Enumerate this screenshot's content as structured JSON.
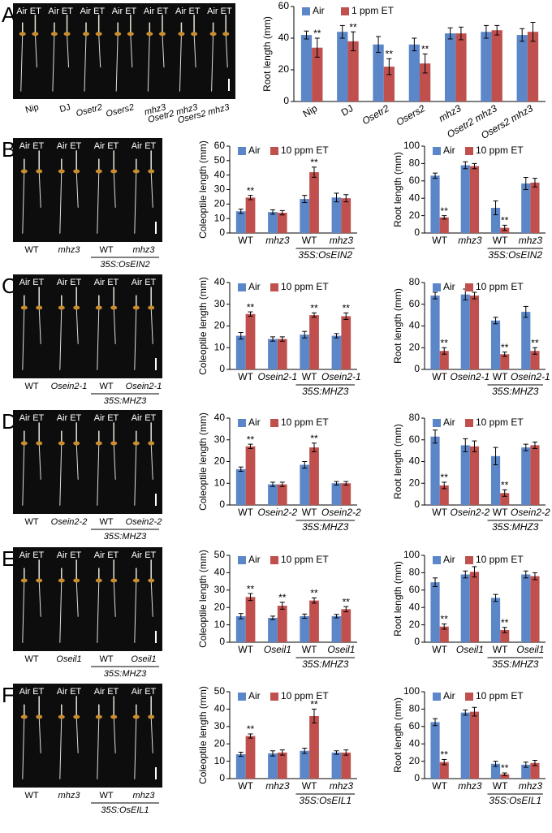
{
  "panels": [
    {
      "label": "A",
      "photo": {
        "pairs": [
          "Air ET",
          "Air ET",
          "Air ET",
          "Air ET",
          "Air ET",
          "Air ET",
          "Air ET"
        ],
        "genotypes": [
          "Nip",
          "DJ",
          "Osetr2",
          "Osers2",
          "mhz3",
          "Osetr2 mhz3",
          "Osers2 mhz3"
        ]
      }
    },
    {
      "label": "B",
      "photo": {
        "pairs": [
          "Air ET",
          "Air ET",
          "Air ET",
          "Air ET"
        ],
        "genotypes": [
          "WT",
          "mhz3",
          "WT",
          "mhz3"
        ],
        "group": "35S:OsEIN2"
      }
    },
    {
      "label": "C",
      "photo": {
        "pairs": [
          "Air ET",
          "Air ET",
          "Air ET",
          "Air ET"
        ],
        "genotypes": [
          "WT",
          "Osein2-1",
          "WT",
          "Osein2-1"
        ],
        "group": "35S:MHZ3"
      }
    },
    {
      "label": "D",
      "photo": {
        "pairs": [
          "Air ET",
          "Air ET",
          "Air ET",
          "Air ET"
        ],
        "genotypes": [
          "WT",
          "Osein2-2",
          "WT",
          "Osein2-2"
        ],
        "group": "35S:MHZ3"
      }
    },
    {
      "label": "E",
      "photo": {
        "pairs": [
          "Air ET",
          "Air ET",
          "Air ET",
          "Air ET"
        ],
        "genotypes": [
          "WT",
          "Oseil1",
          "WT",
          "Oseil1"
        ],
        "group": "35S:MHZ3"
      }
    },
    {
      "label": "F",
      "photo": {
        "pairs": [
          "Air ET",
          "Air ET",
          "Air ET",
          "Air ET"
        ],
        "genotypes": [
          "WT",
          "mhz3",
          "WT",
          "mhz3"
        ],
        "group": "35S:OsEIL1"
      }
    }
  ],
  "chart_data": [
    {
      "type": "bar",
      "ylabel": "Root length (mm)",
      "categories": [
        "Nip",
        "DJ",
        "Osetr2",
        "Osers2",
        "mhz3",
        "Osetr2 mhz3",
        "Osers2 mhz3"
      ],
      "ylim": [
        0,
        60
      ],
      "yticks": [
        0,
        20,
        40,
        60
      ],
      "series": [
        {
          "name": "Air",
          "color": "#5b87c9",
          "values": [
            42,
            44,
            36,
            36,
            43,
            44,
            42
          ],
          "errors": [
            2.5,
            4,
            5,
            4,
            3.5,
            4,
            4
          ]
        },
        {
          "name": "1 ppm ET",
          "color": "#c0504d",
          "values": [
            34,
            38,
            22,
            24,
            43,
            45,
            44
          ],
          "errors": [
            6,
            6,
            5,
            6,
            4,
            3,
            6
          ],
          "significance": [
            "**",
            "**",
            "**",
            "**",
            null,
            null,
            null
          ]
        }
      ]
    },
    {
      "type": "bar",
      "ylabel": "Coleoptile length (mm)",
      "categories": [
        "WT",
        "mhz3",
        "WT",
        "mhz3"
      ],
      "group_label": "35S:OsEIN2",
      "ylim": [
        0,
        60
      ],
      "yticks": [
        0,
        10,
        20,
        30,
        40,
        50,
        60
      ],
      "series": [
        {
          "name": "Air",
          "color": "#5b87c9",
          "values": [
            15,
            14.5,
            23.5,
            24.5
          ],
          "errors": [
            1.5,
            1.5,
            2.5,
            3
          ]
        },
        {
          "name": "10 ppm ET",
          "color": "#c0504d",
          "values": [
            24.5,
            14,
            42,
            24
          ],
          "errors": [
            1.5,
            1.5,
            3.5,
            2.5
          ],
          "significance": [
            "**",
            null,
            "**",
            null
          ]
        }
      ]
    },
    {
      "type": "bar",
      "ylabel": "Root length (mm)",
      "categories": [
        "WT",
        "mhz3",
        "WT",
        "mhz3"
      ],
      "group_label": "35S:OsEIN2",
      "ylim": [
        0,
        100
      ],
      "yticks": [
        0,
        20,
        40,
        60,
        80,
        100
      ],
      "series": [
        {
          "name": "Air",
          "color": "#5b87c9",
          "values": [
            66,
            78,
            29,
            57
          ],
          "errors": [
            3,
            4,
            8,
            7
          ]
        },
        {
          "name": "10 ppm ET",
          "color": "#c0504d",
          "values": [
            18,
            77,
            6,
            58
          ],
          "errors": [
            2,
            3,
            3,
            5
          ],
          "significance": [
            "**",
            null,
            "**",
            null
          ]
        }
      ]
    },
    {
      "type": "bar",
      "ylabel": "Coleoptile length (mm)",
      "categories": [
        "WT",
        "Osein2-1",
        "WT",
        "Osein2-1"
      ],
      "group_label": "35S:MHZ3",
      "ylim": [
        0,
        40
      ],
      "yticks": [
        0,
        10,
        20,
        30,
        40
      ],
      "series": [
        {
          "name": "Air",
          "color": "#5b87c9",
          "values": [
            15.5,
            14,
            16,
            15.5
          ],
          "errors": [
            1.5,
            1,
            1.5,
            1
          ]
        },
        {
          "name": "10 ppm ET",
          "color": "#c0504d",
          "values": [
            25.5,
            14,
            25,
            24.5
          ],
          "errors": [
            1,
            1,
            1,
            1.5
          ],
          "significance": [
            "**",
            null,
            "**",
            "**"
          ]
        }
      ]
    },
    {
      "type": "bar",
      "ylabel": "Root length (mm)",
      "categories": [
        "WT",
        "Osein2-1",
        "WT",
        "Osein2-1"
      ],
      "group_label": "35S:MHZ3",
      "ylim": [
        0,
        80
      ],
      "yticks": [
        0,
        20,
        40,
        60,
        80
      ],
      "series": [
        {
          "name": "Air",
          "color": "#5b87c9",
          "values": [
            68,
            69,
            45,
            53
          ],
          "errors": [
            3,
            5,
            3,
            5
          ]
        },
        {
          "name": "10 ppm ET",
          "color": "#c0504d",
          "values": [
            17,
            68,
            14,
            17
          ],
          "errors": [
            3,
            3,
            2,
            3
          ],
          "significance": [
            "**",
            null,
            "**",
            "**"
          ]
        }
      ]
    },
    {
      "type": "bar",
      "ylabel": "Coleoptile length (mm)",
      "categories": [
        "WT",
        "Osein2-2",
        "WT",
        "Osein2-2"
      ],
      "group_label": "35S:MHZ3",
      "ylim": [
        0,
        40
      ],
      "yticks": [
        0,
        10,
        20,
        30,
        40
      ],
      "series": [
        {
          "name": "Air",
          "color": "#5b87c9",
          "values": [
            16.5,
            9.5,
            18.5,
            10
          ],
          "errors": [
            1,
            1,
            1.5,
            0.8
          ]
        },
        {
          "name": "10 ppm ET",
          "color": "#c0504d",
          "values": [
            27,
            9.5,
            26.5,
            10
          ],
          "errors": [
            1,
            1,
            2,
            0.8
          ],
          "significance": [
            "**",
            null,
            "**",
            null
          ]
        }
      ]
    },
    {
      "type": "bar",
      "ylabel": "Root length (mm)",
      "categories": [
        "WT",
        "Osein2-2",
        "WT",
        "Osein2-2"
      ],
      "group_label": "35S:MHZ3",
      "ylim": [
        0,
        80
      ],
      "yticks": [
        0,
        20,
        40,
        60,
        80
      ],
      "series": [
        {
          "name": "Air",
          "color": "#5b87c9",
          "values": [
            63,
            55,
            45,
            53
          ],
          "errors": [
            6,
            6,
            8,
            3
          ]
        },
        {
          "name": "10 ppm ET",
          "color": "#c0504d",
          "values": [
            18,
            54,
            11,
            55
          ],
          "errors": [
            3,
            5,
            3,
            3
          ],
          "significance": [
            "**",
            null,
            "**",
            null
          ]
        }
      ]
    },
    {
      "type": "bar",
      "ylabel": "Coleoptile length (mm)",
      "categories": [
        "WT",
        "Oseil1",
        "WT",
        "Oseil1"
      ],
      "group_label": "35S:MHZ3",
      "ylim": [
        0,
        50
      ],
      "yticks": [
        0,
        10,
        20,
        30,
        40,
        50
      ],
      "series": [
        {
          "name": "Air",
          "color": "#5b87c9",
          "values": [
            15,
            14,
            15,
            15
          ],
          "errors": [
            1.5,
            1,
            1.2,
            1
          ]
        },
        {
          "name": "10 ppm ET",
          "color": "#c0504d",
          "values": [
            26,
            21,
            24,
            19
          ],
          "errors": [
            2,
            2,
            1.5,
            1.5
          ],
          "significance": [
            "**",
            "**",
            "**",
            "**"
          ]
        }
      ]
    },
    {
      "type": "bar",
      "ylabel": "Root length (mm)",
      "categories": [
        "WT",
        "Oseil1",
        "WT",
        "Oseil1"
      ],
      "group_label": "35S:MHZ3",
      "ylim": [
        0,
        100
      ],
      "yticks": [
        0,
        20,
        40,
        60,
        80,
        100
      ],
      "series": [
        {
          "name": "Air",
          "color": "#5b87c9",
          "values": [
            69,
            78,
            51,
            78
          ],
          "errors": [
            5,
            4,
            4,
            4
          ]
        },
        {
          "name": "10 ppm ET",
          "color": "#c0504d",
          "values": [
            18,
            81,
            14,
            76
          ],
          "errors": [
            3,
            6,
            3,
            4
          ],
          "significance": [
            "**",
            null,
            "**",
            null
          ]
        }
      ]
    },
    {
      "type": "bar",
      "ylabel": "Coleoptile length (mm)",
      "categories": [
        "WT",
        "mhz3",
        "WT",
        "mhz3"
      ],
      "group_label": "35S:OsEIL1",
      "ylim": [
        0,
        50
      ],
      "yticks": [
        0,
        10,
        20,
        30,
        40,
        50
      ],
      "series": [
        {
          "name": "Air",
          "color": "#5b87c9",
          "values": [
            14,
            14.5,
            16,
            15
          ],
          "errors": [
            1.2,
            1.5,
            1.5,
            1
          ]
        },
        {
          "name": "10 ppm ET",
          "color": "#c0504d",
          "values": [
            24.5,
            15,
            36,
            15
          ],
          "errors": [
            1.2,
            1.5,
            4,
            1.5
          ],
          "significance": [
            "**",
            null,
            "**",
            null
          ]
        }
      ]
    },
    {
      "type": "bar",
      "ylabel": "Root length (mm)",
      "categories": [
        "WT",
        "mhz3",
        "WT",
        "mhz3"
      ],
      "group_label": "35S:OsEIL1",
      "ylim": [
        0,
        100
      ],
      "yticks": [
        0,
        20,
        40,
        60,
        80,
        100
      ],
      "series": [
        {
          "name": "Air",
          "color": "#5b87c9",
          "values": [
            65,
            76,
            17,
            16
          ],
          "errors": [
            4,
            3,
            3,
            3
          ]
        },
        {
          "name": "10 ppm ET",
          "color": "#c0504d",
          "values": [
            19,
            77,
            5,
            18
          ],
          "errors": [
            3,
            5,
            1.5,
            3
          ],
          "significance": [
            "**",
            null,
            "**",
            null
          ]
        }
      ]
    }
  ]
}
